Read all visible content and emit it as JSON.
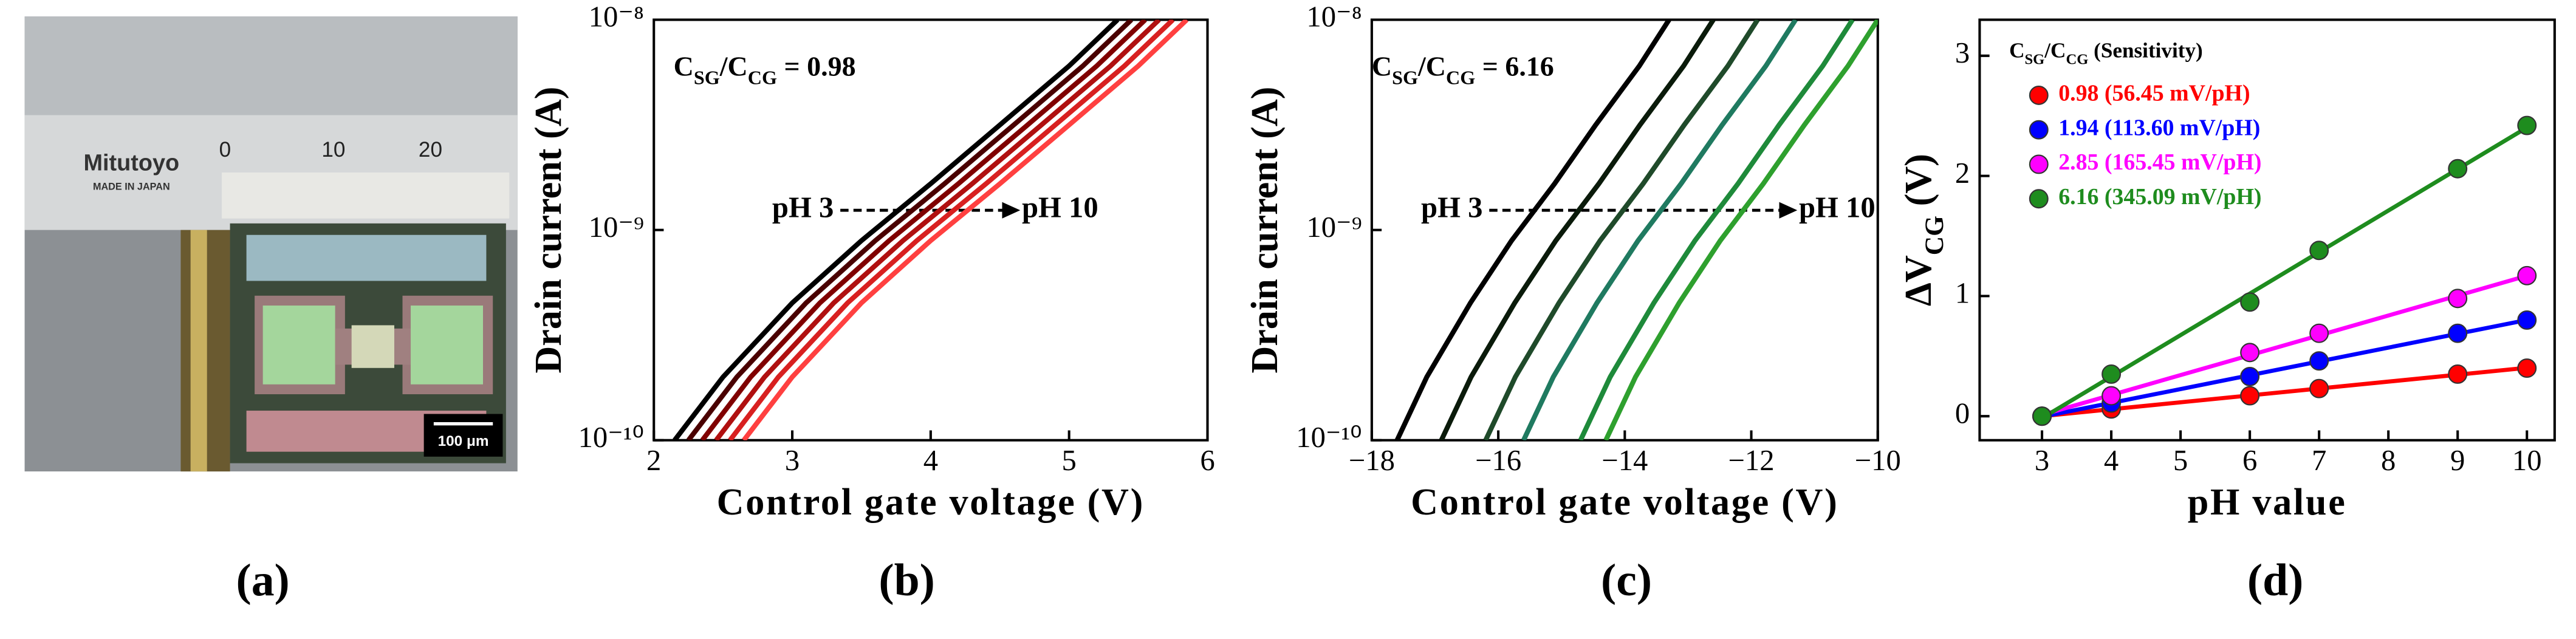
{
  "panel_labels": [
    "(a)",
    "(b)",
    "(c)",
    "(d)"
  ],
  "photo": {
    "brand": "Mitutoyo",
    "origin": "MADE IN JAPAN",
    "scale_numbers": [
      "0",
      "10",
      "20"
    ],
    "scale_bar": "100 μm"
  },
  "chart_data": [
    {
      "type": "line",
      "log_y": true,
      "x_label": "Control gate voltage (V)",
      "y_label": "Drain current (A)",
      "annotation_parts": [
        "C",
        "SG",
        "/C",
        "CG",
        " = 0.98"
      ],
      "arrow_from": "pH 3",
      "arrow_to": "pH 10",
      "xlim": [
        2,
        6
      ],
      "xticks": [
        2,
        3,
        4,
        5,
        6
      ],
      "ylim": [
        1e-10,
        1e-08
      ],
      "yticks": [
        {
          "value": 1e-10,
          "label": "10⁻¹⁰"
        },
        {
          "value": 1e-09,
          "label": "10⁻⁹"
        },
        {
          "value": 1e-08,
          "label": "10⁻⁸"
        }
      ],
      "series": [
        {
          "color": "#000000",
          "x": [
            2.15,
            2.5,
            3,
            3.5,
            4,
            4.5,
            5,
            5.35
          ],
          "values": [
            1e-10,
            2e-10,
            4.5e-10,
            8.9e-10,
            1.66e-09,
            3.16e-09,
            6.03e-09,
            1e-08
          ]
        },
        {
          "color": "#4a0000",
          "x": [
            2.25,
            2.6,
            3.1,
            3.6,
            4.1,
            4.6,
            5.1,
            5.45
          ],
          "values": [
            1e-10,
            2e-10,
            4.5e-10,
            8.9e-10,
            1.66e-09,
            3.16e-09,
            6.03e-09,
            1e-08
          ]
        },
        {
          "color": "#800000",
          "x": [
            2.35,
            2.7,
            3.2,
            3.7,
            4.2,
            4.7,
            5.2,
            5.55
          ],
          "values": [
            1e-10,
            2e-10,
            4.5e-10,
            8.9e-10,
            1.66e-09,
            3.16e-09,
            6.03e-09,
            1e-08
          ]
        },
        {
          "color": "#b01010",
          "x": [
            2.45,
            2.8,
            3.3,
            3.8,
            4.3,
            4.8,
            5.3,
            5.65
          ],
          "values": [
            1e-10,
            2e-10,
            4.5e-10,
            8.9e-10,
            1.66e-09,
            3.16e-09,
            6.03e-09,
            1e-08
          ]
        },
        {
          "color": "#d82020",
          "x": [
            2.55,
            2.9,
            3.4,
            3.9,
            4.4,
            4.9,
            5.4,
            5.75
          ],
          "values": [
            1e-10,
            2e-10,
            4.5e-10,
            8.9e-10,
            1.66e-09,
            3.16e-09,
            6.03e-09,
            1e-08
          ]
        },
        {
          "color": "#ff4040",
          "x": [
            2.65,
            3,
            3.5,
            4,
            4.5,
            5,
            5.5,
            5.85
          ],
          "values": [
            1e-10,
            2e-10,
            4.5e-10,
            8.9e-10,
            1.66e-09,
            3.16e-09,
            6.03e-09,
            1e-08
          ]
        }
      ]
    },
    {
      "type": "line",
      "log_y": true,
      "x_label": "Control gate voltage (V)",
      "y_label": "Drain current (A)",
      "annotation_parts": [
        "C",
        "SG",
        "/C",
        "CG",
        " = 6.16"
      ],
      "arrow_from": "pH 3",
      "arrow_to": "pH 10",
      "xlim": [
        -18,
        -10
      ],
      "xticks": [
        {
          "value": -18,
          "label": "−18"
        },
        {
          "value": -16,
          "label": "−16"
        },
        {
          "value": -14,
          "label": "−14"
        },
        {
          "value": -12,
          "label": "−12"
        },
        {
          "value": -10,
          "label": "−10"
        }
      ],
      "ylim": [
        1e-10,
        1e-08
      ],
      "yticks": [
        {
          "value": 1e-10,
          "label": "10⁻¹⁰"
        },
        {
          "value": 1e-09,
          "label": "10⁻⁹"
        },
        {
          "value": 1e-08,
          "label": "10⁻⁸"
        }
      ],
      "series": [
        {
          "color": "#000000",
          "x": [
            -17.6,
            -17.13,
            -16.44,
            -15.79,
            -15.11,
            -14.46,
            -13.77,
            -13.3
          ],
          "values": [
            1e-10,
            2e-10,
            4.5e-10,
            8.9e-10,
            1.66e-09,
            3.16e-09,
            6.03e-09,
            1e-08
          ]
        },
        {
          "color": "#0a1a0a",
          "x": [
            -16.9,
            -16.43,
            -15.74,
            -15.09,
            -14.41,
            -13.76,
            -13.07,
            -12.6
          ],
          "values": [
            1e-10,
            2e-10,
            4.5e-10,
            8.9e-10,
            1.66e-09,
            3.16e-09,
            6.03e-09,
            1e-08
          ]
        },
        {
          "color": "#1f4a2a",
          "x": [
            -16.2,
            -15.73,
            -15.04,
            -14.39,
            -13.71,
            -13.06,
            -12.37,
            -11.9
          ],
          "values": [
            1e-10,
            2e-10,
            4.5e-10,
            8.9e-10,
            1.66e-09,
            3.16e-09,
            6.03e-09,
            1e-08
          ]
        },
        {
          "color": "#1f7a60",
          "x": [
            -15.6,
            -15.13,
            -14.44,
            -13.79,
            -13.11,
            -12.46,
            -11.77,
            -11.3
          ],
          "values": [
            1e-10,
            2e-10,
            4.5e-10,
            8.9e-10,
            1.66e-09,
            3.16e-09,
            6.03e-09,
            1e-08
          ]
        },
        {
          "color": "#1e8a3a",
          "x": [
            -14.7,
            -14.23,
            -13.54,
            -12.89,
            -12.21,
            -11.56,
            -10.87,
            -10.4
          ],
          "values": [
            1e-10,
            2e-10,
            4.5e-10,
            8.9e-10,
            1.66e-09,
            3.16e-09,
            6.03e-09,
            1e-08
          ]
        },
        {
          "color": "#2ea02e",
          "x": [
            -14.3,
            -13.83,
            -13.14,
            -12.49,
            -11.81,
            -11.16,
            -10.47,
            -10
          ],
          "values": [
            1e-10,
            2e-10,
            4.5e-10,
            8.9e-10,
            1.66e-09,
            3.16e-09,
            6.03e-09,
            1e-08
          ]
        }
      ]
    },
    {
      "type": "scatter",
      "trendline": "linear",
      "x_label": "pH value",
      "y_label_parts": [
        "ΔV",
        "CG",
        " (V)"
      ],
      "legend_title_parts": [
        "C",
        "SG",
        "/C",
        "CG",
        " (Sensitivity)"
      ],
      "xlim": [
        2.1,
        10.4
      ],
      "xticks": [
        3,
        4,
        5,
        6,
        7,
        8,
        9,
        10
      ],
      "ylim": [
        -0.2,
        3.3
      ],
      "yticks": [
        0,
        1,
        2,
        3
      ],
      "x": [
        3,
        4,
        6,
        7,
        9,
        10
      ],
      "series": [
        {
          "name": "0.98 (56.45 mV/pH)",
          "color": "#ff0000",
          "values": [
            0,
            0.06,
            0.17,
            0.23,
            0.35,
            0.4
          ]
        },
        {
          "name": "1.94 (113.60 mV/pH)",
          "color": "#0000ff",
          "values": [
            0,
            0.11,
            0.33,
            0.46,
            0.69,
            0.8
          ]
        },
        {
          "name": "2.85 (165.45 mV/pH)",
          "color": "#ff00ff",
          "values": [
            0,
            0.17,
            0.53,
            0.69,
            0.98,
            1.17
          ]
        },
        {
          "name": "6.16 (345.09 mV/pH)",
          "color": "#1e8c1e",
          "values": [
            0,
            0.35,
            0.95,
            1.38,
            2.06,
            2.42
          ]
        }
      ]
    }
  ]
}
